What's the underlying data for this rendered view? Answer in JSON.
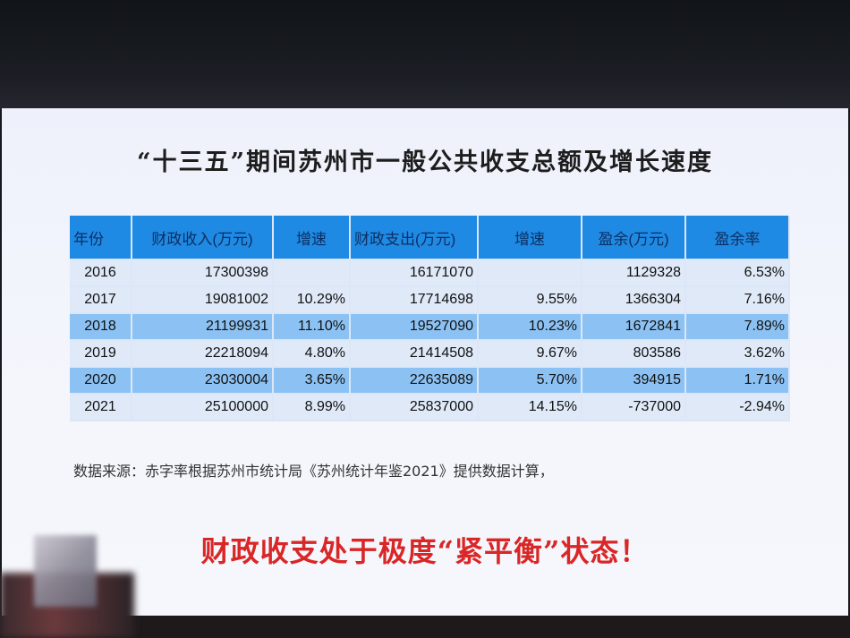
{
  "title": "“十三五”期间苏州市一般公共收支总额及增长速度",
  "table": {
    "headers": [
      "年份",
      "财政收入(万元)",
      "增速",
      "财政支出(万元)",
      "增速",
      "盈余(万元)",
      "盈余率"
    ],
    "rows": [
      [
        "2016",
        "17300398",
        "",
        "16171070",
        "",
        "1129328",
        "6.53%"
      ],
      [
        "2017",
        "19081002",
        "10.29%",
        "17714698",
        "9.55%",
        "1366304",
        "7.16%"
      ],
      [
        "2018",
        "21199931",
        "11.10%",
        "19527090",
        "10.23%",
        "1672841",
        "7.89%"
      ],
      [
        "2019",
        "22218094",
        "4.80%",
        "21414508",
        "9.67%",
        "803586",
        "3.62%"
      ],
      [
        "2020",
        "23030004",
        "3.65%",
        "22635089",
        "5.70%",
        "394915",
        "1.71%"
      ],
      [
        "2021",
        "25100000",
        "8.99%",
        "25837000",
        "14.15%",
        "-737000",
        "-2.94%"
      ]
    ]
  },
  "source": "数据来源：赤字率根据苏州市统计局《苏州统计年鉴2021》提供数据计算，",
  "slogan": "财政收支处于极度“紧平衡”状态！",
  "colors": {
    "header_bg": "#1f8ae3",
    "row_light": "#dfe9f8",
    "row_dark": "#8cc2f3",
    "slogan": "#d92626"
  }
}
